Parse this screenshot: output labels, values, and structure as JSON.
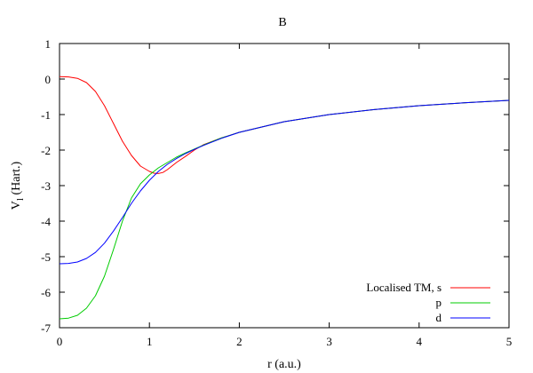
{
  "chart_data": {
    "type": "line",
    "title": "B",
    "xlabel": "r (a.u.)",
    "ylabel_main": "V",
    "ylabel_sub": "l",
    "ylabel_rest": " (Hart.)",
    "xlim": [
      0,
      5
    ],
    "ylim": [
      -7,
      1
    ],
    "xticks": [
      0,
      1,
      2,
      3,
      4,
      5
    ],
    "yticks": [
      1,
      0,
      -1,
      -2,
      -3,
      -4,
      -5,
      -6,
      -7
    ],
    "xtick_labels": [
      "0",
      "1",
      "2",
      "3",
      "4",
      "5"
    ],
    "ytick_labels": [
      "1",
      "0",
      "-1",
      "-2",
      "-3",
      "-4",
      "-5",
      "-6",
      "-7"
    ],
    "grid": false,
    "legend_position": "bottom-right",
    "series": [
      {
        "name": "Localised TM, s",
        "color": "#ff0000",
        "x": [
          0,
          0.1,
          0.2,
          0.3,
          0.4,
          0.5,
          0.6,
          0.7,
          0.8,
          0.9,
          1.0,
          1.05,
          1.1,
          1.15,
          1.2,
          1.3,
          1.4,
          1.5,
          1.6,
          1.8,
          2.0,
          2.5,
          3.0,
          3.5,
          4.0,
          4.5,
          5.0
        ],
        "y": [
          0.07,
          0.06,
          0.02,
          -0.1,
          -0.35,
          -0.75,
          -1.25,
          -1.75,
          -2.15,
          -2.45,
          -2.6,
          -2.65,
          -2.66,
          -2.63,
          -2.55,
          -2.35,
          -2.18,
          -2.0,
          -1.85,
          -1.66,
          -1.5,
          -1.2,
          -1.0,
          -0.86,
          -0.75,
          -0.67,
          -0.6
        ]
      },
      {
        "name": "p",
        "color": "#00cc00",
        "x": [
          0,
          0.1,
          0.2,
          0.3,
          0.4,
          0.5,
          0.6,
          0.7,
          0.8,
          0.9,
          1.0,
          1.1,
          1.2,
          1.3,
          1.4,
          1.5,
          1.6,
          1.8,
          2.0,
          2.5,
          3.0,
          3.5,
          4.0,
          4.5,
          5.0
        ],
        "y": [
          -6.75,
          -6.73,
          -6.65,
          -6.45,
          -6.1,
          -5.55,
          -4.8,
          -4.0,
          -3.35,
          -2.95,
          -2.7,
          -2.5,
          -2.35,
          -2.2,
          -2.08,
          -1.97,
          -1.86,
          -1.66,
          -1.5,
          -1.2,
          -1.0,
          -0.86,
          -0.75,
          -0.67,
          -0.6
        ]
      },
      {
        "name": "d",
        "color": "#0000ff",
        "x": [
          0,
          0.1,
          0.2,
          0.3,
          0.4,
          0.5,
          0.6,
          0.7,
          0.8,
          0.9,
          1.0,
          1.1,
          1.2,
          1.3,
          1.4,
          1.5,
          1.6,
          1.8,
          2.0,
          2.5,
          3.0,
          3.5,
          4.0,
          4.5,
          5.0
        ],
        "y": [
          -5.2,
          -5.19,
          -5.15,
          -5.05,
          -4.88,
          -4.62,
          -4.28,
          -3.9,
          -3.5,
          -3.15,
          -2.85,
          -2.6,
          -2.4,
          -2.24,
          -2.1,
          -1.98,
          -1.87,
          -1.67,
          -1.5,
          -1.2,
          -1.0,
          -0.86,
          -0.75,
          -0.67,
          -0.6
        ]
      }
    ]
  }
}
